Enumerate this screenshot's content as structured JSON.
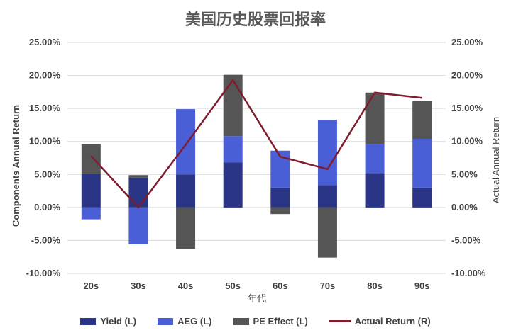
{
  "chart_data": {
    "type": "bar",
    "title": "美国历史股票回报率",
    "xlabel": "年代",
    "ylabel_left": "Components Annual Return",
    "ylabel_right": "Actual Annual Return",
    "categories": [
      "20s",
      "30s",
      "40s",
      "50s",
      "60s",
      "70s",
      "80s",
      "90s"
    ],
    "ylim": [
      -10,
      25
    ],
    "y_ticks": [
      "-10.00%",
      "-5.00%",
      "0.00%",
      "5.00%",
      "10.00%",
      "15.00%",
      "20.00%",
      "25.00%"
    ],
    "stacked": true,
    "grid": true,
    "legend_position": "bottom",
    "series": [
      {
        "name": "Yield (L)",
        "kind": "bar",
        "axis": "left",
        "color": "#2a3585",
        "values": [
          5.1,
          4.5,
          5.0,
          6.8,
          3.0,
          3.4,
          5.2,
          3.0
        ]
      },
      {
        "name": "AEG (L)",
        "kind": "bar",
        "axis": "left",
        "color": "#4a5fd6",
        "values": [
          -1.8,
          -5.6,
          9.9,
          4.0,
          5.6,
          9.9,
          4.4,
          7.4
        ]
      },
      {
        "name": "PE Effect (L)",
        "kind": "bar",
        "axis": "left",
        "color": "#555555",
        "values": [
          4.5,
          0.4,
          -6.3,
          9.3,
          -1.0,
          -7.6,
          7.8,
          5.7
        ]
      },
      {
        "name": "Actual Return (R)",
        "kind": "line",
        "axis": "right",
        "color": "#7f1d2e",
        "values": [
          7.8,
          0.0,
          9.5,
          19.3,
          7.7,
          5.8,
          17.4,
          16.6
        ]
      }
    ]
  }
}
